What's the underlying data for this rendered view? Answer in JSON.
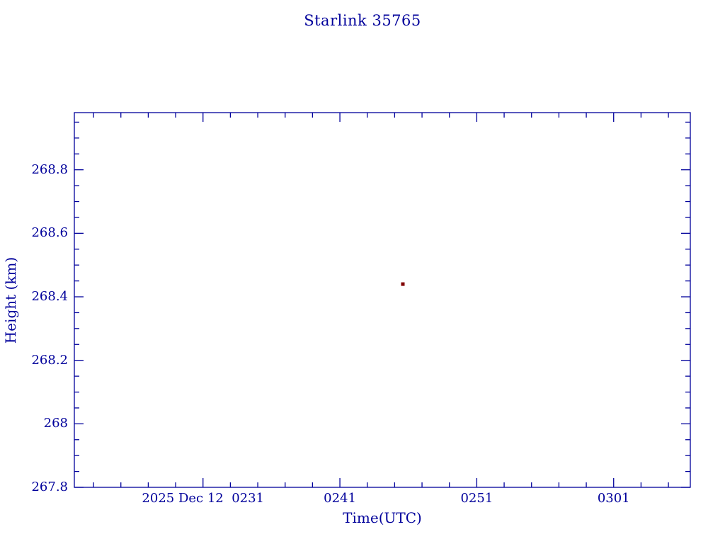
{
  "chart_data": {
    "type": "scatter",
    "title": "Starlink 35765",
    "xlabel": "Time(UTC)",
    "ylabel": "Height (km)",
    "x_tick_labels": [
      "2025 Dec 12  0231",
      "0241",
      "0251",
      "0301"
    ],
    "x_tick_minutes": [
      151,
      161,
      171,
      181
    ],
    "x_minor_step_minutes": 2,
    "xlim_minutes": [
      141.6,
      186.6
    ],
    "y_tick_labels": [
      "267.8",
      "268",
      "268.2",
      "268.4",
      "268.6",
      "268.8"
    ],
    "y_tick_values": [
      267.8,
      268.0,
      268.2,
      268.4,
      268.6,
      268.8
    ],
    "y_minor_step": 0.05,
    "ylim": [
      267.8,
      268.98
    ],
    "points": [
      {
        "time_utc": "0246",
        "time_minutes": 165.6,
        "height_km": 268.44
      }
    ],
    "axis_color": "#00009b",
    "point_color": "#800000",
    "background": "#ffffff",
    "grid": "off",
    "legend": "none"
  }
}
